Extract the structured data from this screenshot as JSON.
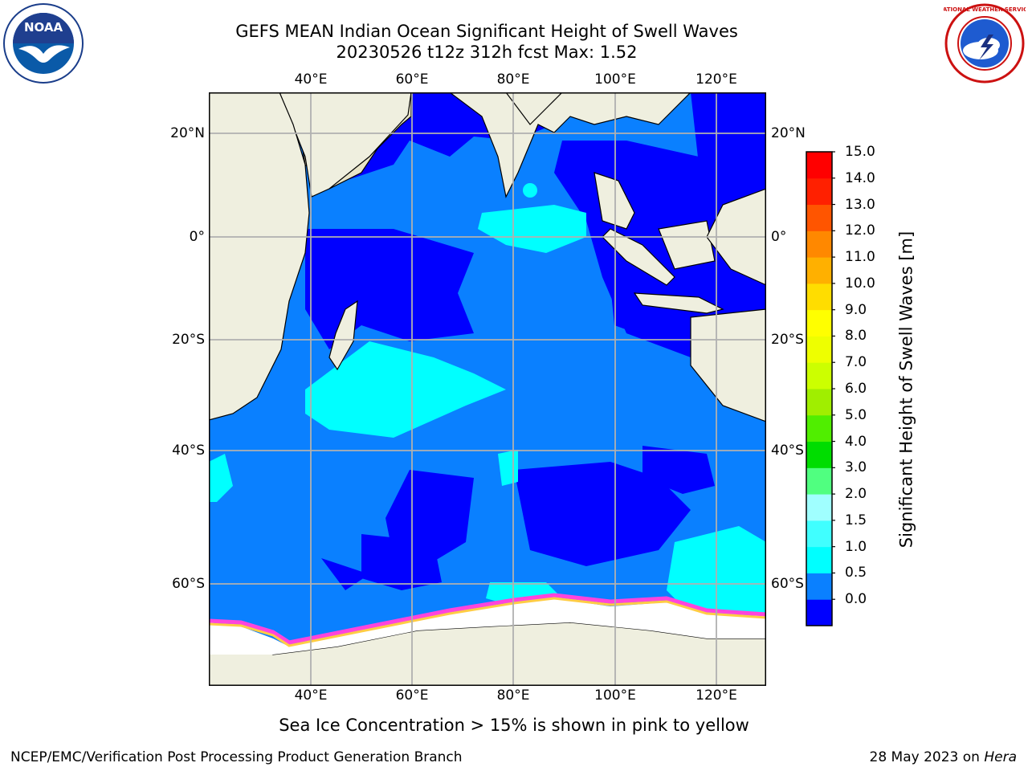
{
  "title": {
    "line1": "GEFS MEAN Indian Ocean Significant Height of Swell Waves",
    "line2": "20230526 t12z 312h fcst   Max: 1.52"
  },
  "map": {
    "lon_ticks": [
      "40°E",
      "60°E",
      "80°E",
      "100°E",
      "120°E"
    ],
    "lat_ticks": [
      "20°N",
      "0°",
      "20°S",
      "40°S",
      "60°S"
    ],
    "colors": {
      "ocean_deep": "#0000ff",
      "ocean_mid": "#0a80ff",
      "ocean_light": "#00ffff",
      "land": "#efefdf",
      "ice": "#ffffff",
      "ice_edge_pink": "#ff44dd",
      "ice_edge_yellow": "#ffcc44",
      "grid": "#b0b0b0"
    }
  },
  "colorbar": {
    "title": "Significant Height of Swell Waves [m]",
    "labels": [
      "15.0",
      "14.0",
      "13.0",
      "12.0",
      "11.0",
      "10.0",
      "9.0",
      "8.0",
      "7.0",
      "6.0",
      "5.0",
      "4.0",
      "3.0",
      "2.0",
      "1.5",
      "1.0",
      "0.5",
      "0.0"
    ],
    "colors": [
      "#0000ff",
      "#0a80ff",
      "#00ffff",
      "#40ffff",
      "#a0ffff",
      "#50ff80",
      "#00dd00",
      "#50ee00",
      "#a0ee00",
      "#ccff00",
      "#eeff00",
      "#ffff00",
      "#ffdd00",
      "#ffb000",
      "#ff8800",
      "#ff5500",
      "#ff2000",
      "#ff0000"
    ]
  },
  "logos": {
    "noaa_text": "NOAA",
    "nws_text": "NATIONAL WEATHER SERVICE"
  },
  "note": "Sea Ice Concentration > 15% is shown in pink to yellow",
  "footer": {
    "left": "NCEP/EMC/Verification Post Processing Product Generation Branch",
    "right_prefix": "28 May 2023 on ",
    "right_host": "Hera"
  }
}
